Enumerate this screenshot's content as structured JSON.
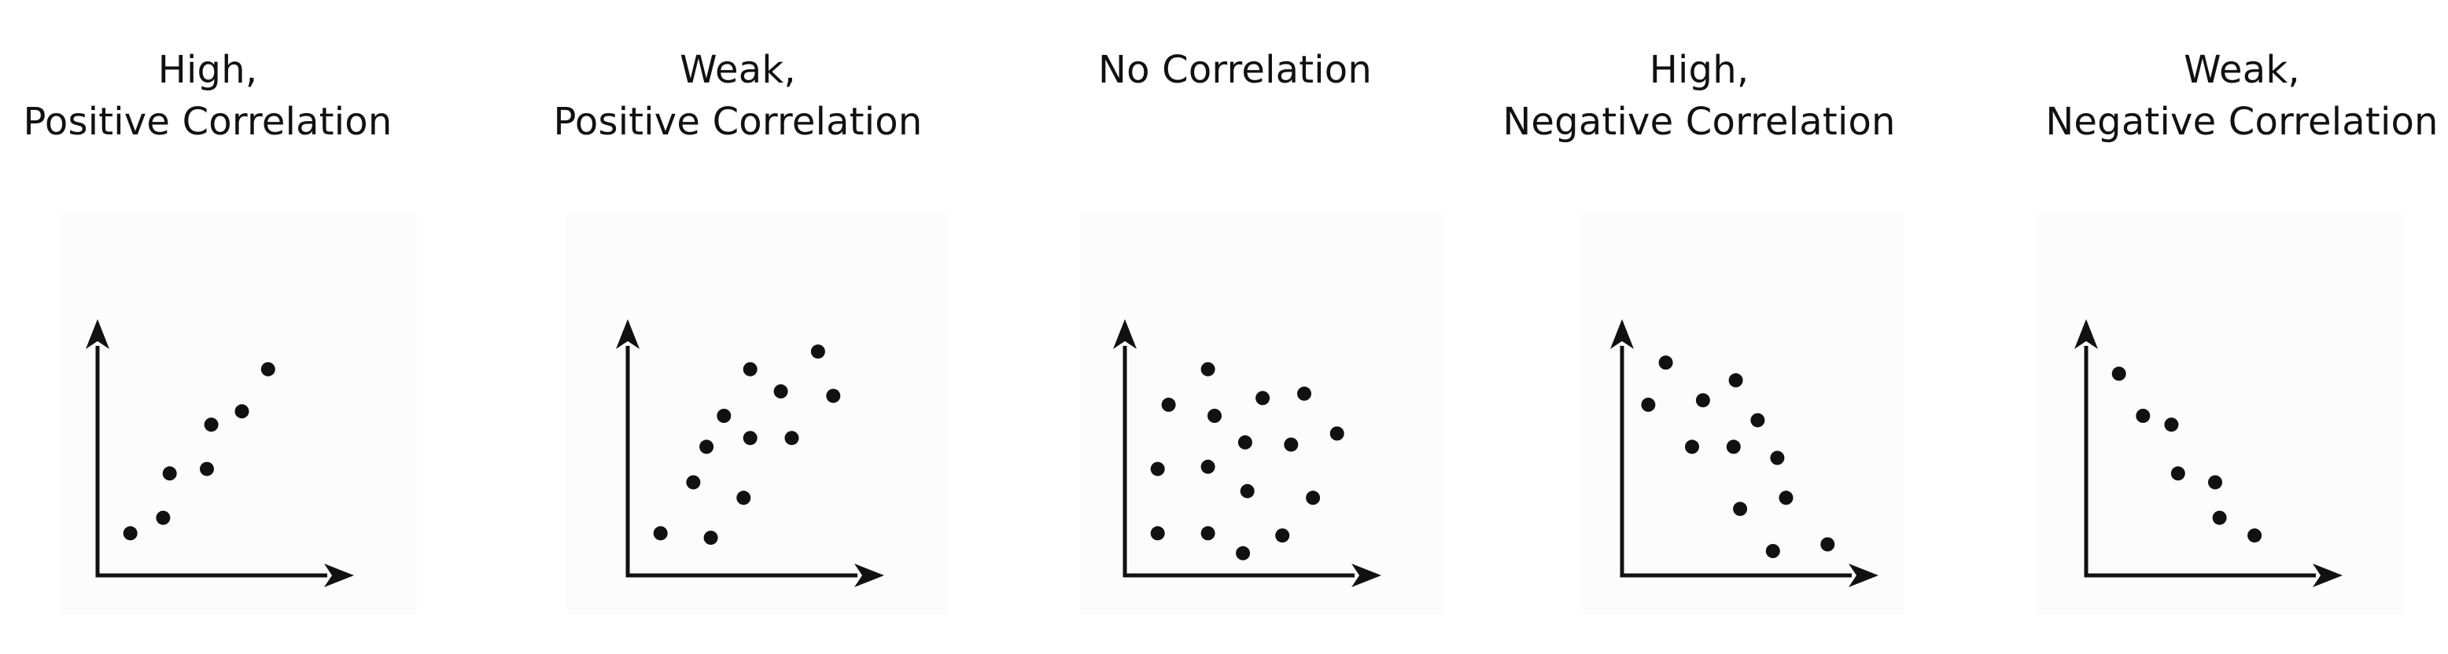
{
  "chart_data": [
    {
      "type": "scatter",
      "title": [
        "High,",
        "Positive Correlation"
      ],
      "xlim": [
        0,
        10
      ],
      "ylim": [
        0,
        10
      ],
      "grid": false,
      "points": [
        [
          1.5,
          1.9
        ],
        [
          3.0,
          2.6
        ],
        [
          3.3,
          4.6
        ],
        [
          5.0,
          4.8
        ],
        [
          5.2,
          6.8
        ],
        [
          6.6,
          7.4
        ],
        [
          7.8,
          9.3
        ]
      ]
    },
    {
      "type": "scatter",
      "title": [
        "Weak,",
        "Positive Correlation"
      ],
      "xlim": [
        0,
        10
      ],
      "ylim": [
        0,
        10
      ],
      "grid": false,
      "points": [
        [
          1.5,
          1.9
        ],
        [
          3.0,
          4.2
        ],
        [
          3.6,
          5.8
        ],
        [
          3.8,
          1.7
        ],
        [
          4.4,
          7.2
        ],
        [
          5.3,
          3.5
        ],
        [
          5.6,
          6.2
        ],
        [
          5.6,
          9.3
        ],
        [
          7.0,
          8.3
        ],
        [
          7.5,
          6.2
        ],
        [
          8.7,
          10.1
        ],
        [
          9.4,
          8.1
        ]
      ]
    },
    {
      "type": "scatter",
      "title": [
        "No Correlation"
      ],
      "xlim": [
        0,
        10
      ],
      "ylim": [
        0,
        10
      ],
      "grid": false,
      "points": [
        [
          1.5,
          4.8
        ],
        [
          1.5,
          1.9
        ],
        [
          2.0,
          7.7
        ],
        [
          3.8,
          9.3
        ],
        [
          3.8,
          4.9
        ],
        [
          3.8,
          1.9
        ],
        [
          4.1,
          7.2
        ],
        [
          5.4,
          1.0
        ],
        [
          5.5,
          6.0
        ],
        [
          5.6,
          3.8
        ],
        [
          6.3,
          8.0
        ],
        [
          7.2,
          1.8
        ],
        [
          7.6,
          5.9
        ],
        [
          8.2,
          8.2
        ],
        [
          8.6,
          3.5
        ],
        [
          9.7,
          6.4
        ]
      ]
    },
    {
      "type": "scatter",
      "title": [
        "High,",
        "Negative Correlation"
      ],
      "xlim": [
        0,
        10
      ],
      "ylim": [
        0,
        10
      ],
      "grid": false,
      "points": [
        [
          1.2,
          7.7
        ],
        [
          2.0,
          9.6
        ],
        [
          3.2,
          5.8
        ],
        [
          3.7,
          7.9
        ],
        [
          5.1,
          5.8
        ],
        [
          5.2,
          8.8
        ],
        [
          5.4,
          3.0
        ],
        [
          6.2,
          7.0
        ],
        [
          7.1,
          5.3
        ],
        [
          6.9,
          1.1
        ],
        [
          7.5,
          3.5
        ],
        [
          9.4,
          1.4
        ]
      ]
    },
    {
      "type": "scatter",
      "title": [
        "Weak,",
        "Negative Correlation"
      ],
      "xlim": [
        0,
        10
      ],
      "ylim": [
        0,
        10
      ],
      "grid": false,
      "points": [
        [
          1.5,
          9.1
        ],
        [
          2.6,
          7.2
        ],
        [
          3.9,
          6.8
        ],
        [
          4.2,
          4.6
        ],
        [
          5.9,
          4.2
        ],
        [
          6.1,
          2.6
        ],
        [
          7.7,
          1.8
        ]
      ]
    }
  ]
}
